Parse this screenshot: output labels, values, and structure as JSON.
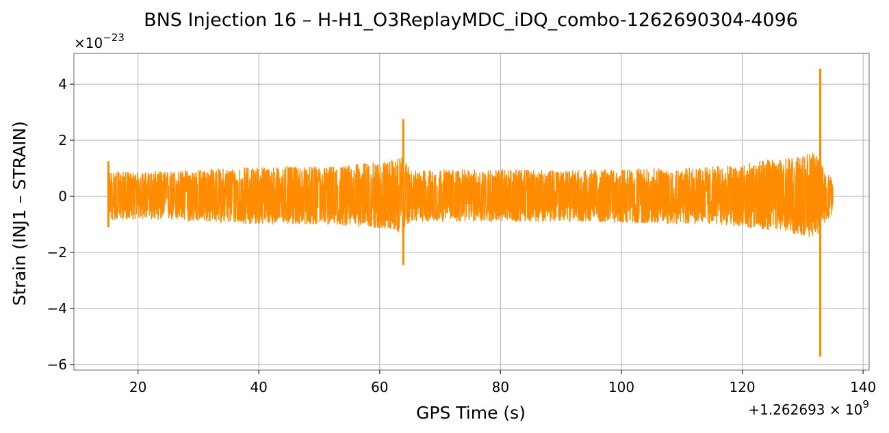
{
  "chart_data": {
    "type": "line",
    "title": "BNS Injection 16 – H-H1_O3ReplayMDC_iDQ_combo-1262690304-4096",
    "xlabel": "GPS Time (s)",
    "ylabel": "Strain (INJ1 – STRAIN)",
    "xlim": [
      9.4,
      141.0
    ],
    "ylim": [
      -6.2,
      5.1
    ],
    "x_ticks": [
      20,
      40,
      60,
      80,
      100,
      120,
      140
    ],
    "x_tick_labels": [
      "20",
      "40",
      "60",
      "80",
      "100",
      "120",
      "140"
    ],
    "y_ticks": [
      -6,
      -4,
      -2,
      0,
      2,
      4
    ],
    "y_tick_labels": [
      "−6",
      "−4",
      "−2",
      "0",
      "2",
      "4"
    ],
    "y_scale_label": "×10",
    "y_scale_exponent": "−23",
    "x_offset_label": "+1.262693 × 10",
    "x_offset_exponent": "9",
    "grid": true,
    "color": "#ff8c00",
    "x_range": [
      15.0,
      135.0
    ],
    "series": [
      {
        "color": "#ff8c00",
        "envelope": {
          "x": [
            15,
            20,
            25,
            30,
            35,
            40,
            45,
            50,
            55,
            58,
            60,
            62,
            63,
            64,
            65,
            70,
            75,
            80,
            85,
            90,
            95,
            100,
            105,
            110,
            115,
            118,
            120,
            122,
            124,
            126,
            128,
            129,
            130,
            131,
            132,
            133,
            134,
            135
          ],
          "upper": [
            0.9,
            0.85,
            0.9,
            0.95,
            1.0,
            1.05,
            1.05,
            1.05,
            1.1,
            1.2,
            1.2,
            1.3,
            1.35,
            1.4,
            0.9,
            0.95,
            0.95,
            0.95,
            0.95,
            0.9,
            0.95,
            0.95,
            1.0,
            1.0,
            1.05,
            1.1,
            1.15,
            1.2,
            1.3,
            1.3,
            1.4,
            1.4,
            1.45,
            1.5,
            1.6,
            1.2,
            0.8,
            0.7
          ],
          "lower": [
            -0.85,
            -0.8,
            -0.85,
            -0.9,
            -0.95,
            -1.0,
            -1.0,
            -1.0,
            -1.05,
            -1.1,
            -1.15,
            -1.2,
            -1.3,
            -1.35,
            -0.9,
            -0.9,
            -0.9,
            -0.9,
            -0.9,
            -0.9,
            -0.9,
            -0.95,
            -0.95,
            -1.0,
            -1.0,
            -1.05,
            -1.1,
            -1.15,
            -1.2,
            -1.25,
            -1.3,
            -1.35,
            -1.4,
            -1.45,
            -1.5,
            -1.2,
            -0.8,
            -0.7
          ]
        },
        "spikes": [
          {
            "x": 15.1,
            "min": -1.1,
            "max": 1.25
          },
          {
            "x": 63.9,
            "min": -2.45,
            "max": 2.75
          },
          {
            "x": 132.9,
            "min": -5.72,
            "max": 4.55
          }
        ]
      }
    ]
  }
}
